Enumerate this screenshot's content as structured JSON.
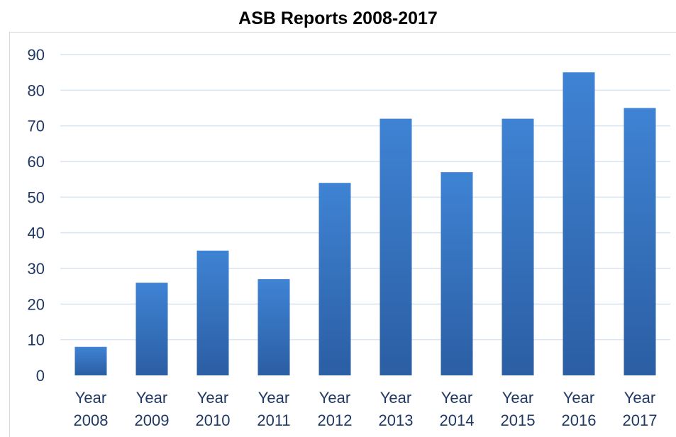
{
  "chart_data": {
    "type": "bar",
    "title": "ASB Reports 2008-2017",
    "xlabel": "",
    "ylabel": "",
    "categories": [
      "Year 2008",
      "Year 2009",
      "Year 2010",
      "Year 2011",
      "Year 2012",
      "Year 2013",
      "Year 2014",
      "Year 2015",
      "Year 2016",
      "Year 2017"
    ],
    "values": [
      8,
      26,
      35,
      27,
      54,
      72,
      57,
      72,
      85,
      75
    ],
    "ylim": [
      0,
      90
    ],
    "yticks": [
      "0",
      "10",
      "20",
      "30",
      "40",
      "50",
      "60",
      "70",
      "80",
      "90"
    ],
    "grid": true,
    "legend": "none",
    "colors": {
      "bar_top": "#3f83d4",
      "bar_bottom": "#2b5ea3",
      "gridline": "#d9e4f2",
      "tick_text": "#1f3864"
    }
  }
}
